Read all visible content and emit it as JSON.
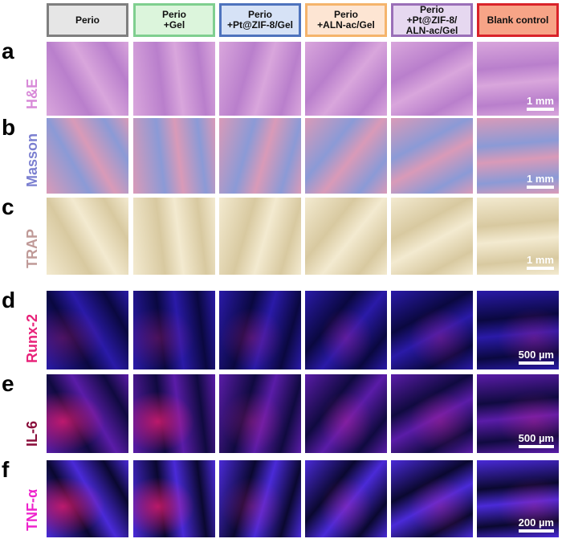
{
  "columns": [
    {
      "label": "Perio",
      "bg": "#e6e6e6",
      "border": "#7f7f7f"
    },
    {
      "label": "Perio\n+Gel",
      "bg": "#dcf5dc",
      "border": "#7fcf8f"
    },
    {
      "label": "Perio\n+Pt@ZIF-8/Gel",
      "bg": "#d6e2f6",
      "border": "#4e73bd"
    },
    {
      "label": "Perio\n+ALN-ac/Gel",
      "bg": "#fde5d3",
      "border": "#f5b46c"
    },
    {
      "label": "Perio\n+Pt@ZIF-8/\nALN-ac/Gel",
      "bg": "#e6d8f0",
      "border": "#9a6fb8"
    },
    {
      "label": "Blank control",
      "bg": "#f7a487",
      "border": "#d9232a"
    }
  ],
  "rows": [
    {
      "letter": "a",
      "stain": "H&E",
      "color": "#d88ad8",
      "scale": "1 mm",
      "tone": [
        "#d9a6dc",
        "#b97fcc"
      ]
    },
    {
      "letter": "b",
      "stain": "Masson",
      "color": "#7b7fd0",
      "scale": "1 mm",
      "tone": [
        "#d99ab8",
        "#8b9ad6"
      ]
    },
    {
      "letter": "c",
      "stain": "TRAP",
      "color": "#c09a98",
      "scale": "1 mm",
      "tone": [
        "#f3ead0",
        "#d8c9a0"
      ]
    },
    {
      "letter": "d",
      "stain": "Runx-2",
      "color": "#e8237a",
      "scale": "500 µm",
      "tone": [
        "#2a1aa8",
        "#0a0840"
      ]
    },
    {
      "letter": "e",
      "stain": "IL-6",
      "color": "#8a0f3c",
      "scale": "500 µm",
      "tone": [
        "#5a1ca8",
        "#100a40"
      ]
    },
    {
      "letter": "f",
      "stain": "TNF-α",
      "color": "#ee22cc",
      "scale": "200 µm",
      "tone": [
        "#4a2ad8",
        "#0a0830"
      ]
    }
  ]
}
